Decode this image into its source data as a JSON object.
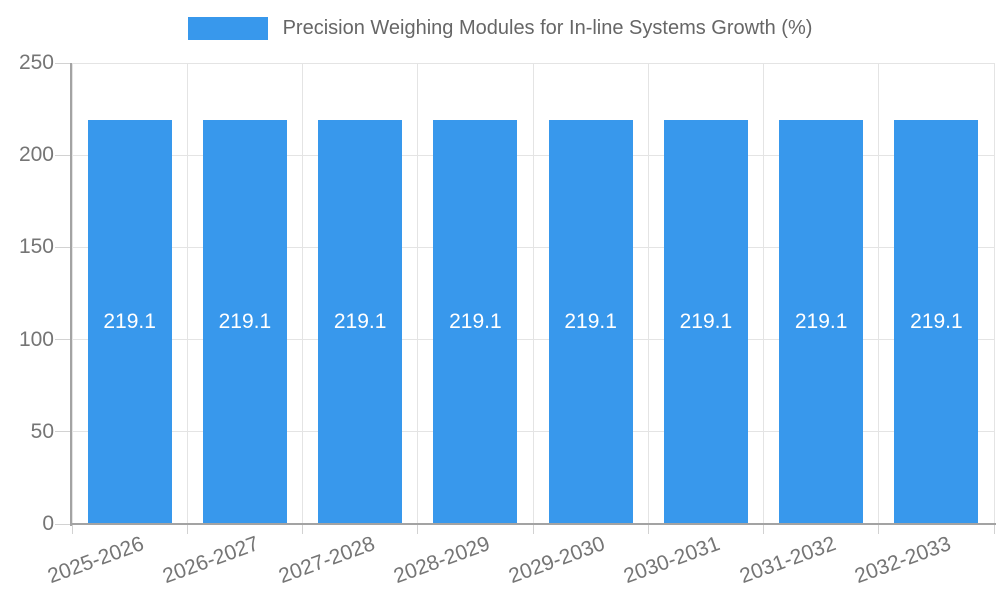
{
  "legend": {
    "label": "Precision Weighing Modules for In-line Systems Growth (%)"
  },
  "chart_data": {
    "type": "bar",
    "title": "Precision Weighing Modules for In-line Systems Growth (%)",
    "categories": [
      "2025-2026",
      "2026-2027",
      "2027-2028",
      "2028-2029",
      "2029-2030",
      "2030-2031",
      "2031-2032",
      "2032-2033"
    ],
    "series": [
      {
        "name": "Precision Weighing Modules for In-line Systems Growth (%)",
        "values": [
          219.1,
          219.1,
          219.1,
          219.1,
          219.1,
          219.1,
          219.1,
          219.1
        ]
      }
    ],
    "bar_value_labels": [
      "219.1",
      "219.1",
      "219.1",
      "219.1",
      "219.1",
      "219.1",
      "219.1",
      "219.1"
    ],
    "xlabel": "",
    "ylabel": "",
    "ylim": [
      0,
      250
    ],
    "yticks": [
      0,
      50,
      100,
      150,
      200,
      250
    ],
    "grid": true,
    "legend_position": "top",
    "x_label_rotation_deg": -20,
    "colors": {
      "bar": "#3898ec",
      "grid_line": "#e4e4e4",
      "axis_line": "#a3a3a3",
      "tick_mark": "#d2d2d2",
      "tick_label": "#757575",
      "legend_text": "#666666",
      "bar_value_text": "#ffffff",
      "background": "#ffffff"
    }
  }
}
